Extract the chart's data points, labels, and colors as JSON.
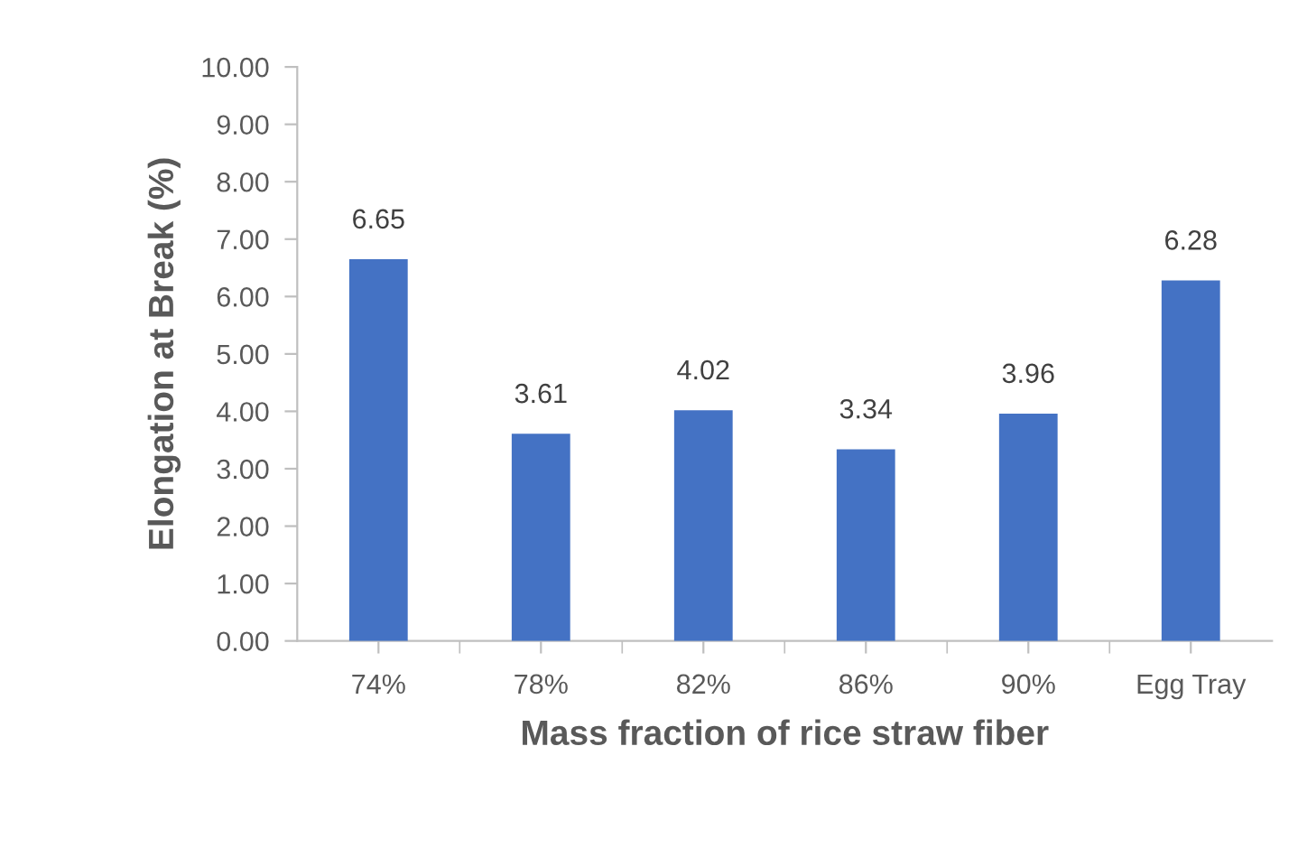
{
  "chart_data": {
    "type": "bar",
    "categories": [
      "74%",
      "78%",
      "82%",
      "86%",
      "90%",
      "Egg Tray"
    ],
    "values": [
      6.65,
      3.61,
      4.02,
      3.34,
      3.96,
      6.28
    ],
    "color": "#4472c4",
    "xlabel": "Mass fraction of rice straw fiber",
    "ylabel": "Elongation at Break (%)",
    "ylim": [
      0,
      10
    ],
    "yticks": [
      {
        "value": 0,
        "label": "0.00"
      },
      {
        "value": 1,
        "label": "1.00"
      },
      {
        "value": 2,
        "label": "2.00"
      },
      {
        "value": 3,
        "label": "3.00"
      },
      {
        "value": 4,
        "label": "4.00"
      },
      {
        "value": 5,
        "label": "5.00"
      },
      {
        "value": 6,
        "label": "6.00"
      },
      {
        "value": 7,
        "label": "7.00"
      },
      {
        "value": 8,
        "label": "8.00"
      },
      {
        "value": 9,
        "label": "9.00"
      },
      {
        "value": 10,
        "label": "10.00"
      }
    ],
    "data_labels": true,
    "grid": false,
    "legend": false
  }
}
